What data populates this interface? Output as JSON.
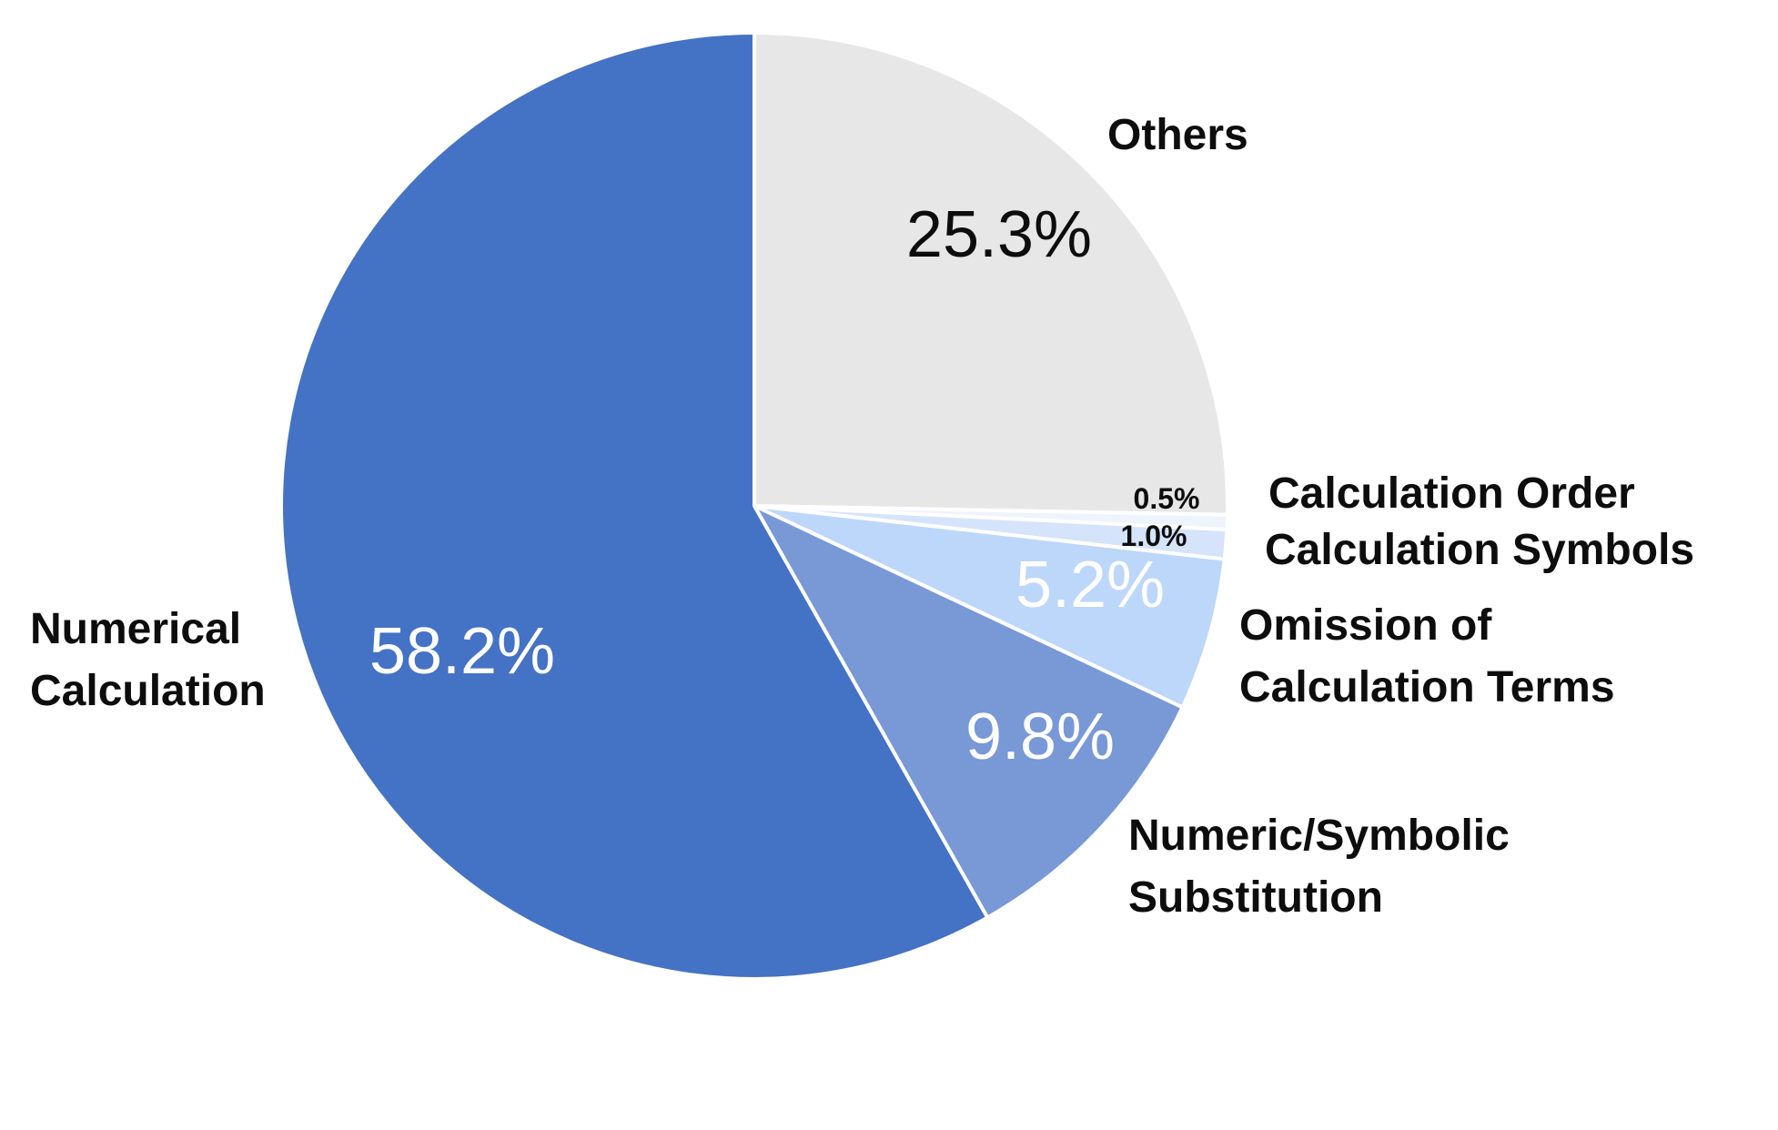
{
  "chart_data": {
    "type": "pie",
    "title": "",
    "legend": "none",
    "slices": [
      {
        "label": "Others",
        "label_lines": [
          "Others"
        ],
        "value": 25.3,
        "value_label": "25.3%",
        "color": "#e7e7e7",
        "value_color": "#0d0d0d"
      },
      {
        "label": "Calculation Order",
        "label_lines": [
          "Calculation Order"
        ],
        "value": 0.5,
        "value_label": "0.5%",
        "color": "#eef3fc",
        "value_color": "#0d0d0d"
      },
      {
        "label": "Calculation Symbols",
        "label_lines": [
          "Calculation Symbols"
        ],
        "value": 1.0,
        "value_label": "1.0%",
        "color": "#d5e4fb",
        "value_color": "#0d0d0d"
      },
      {
        "label": "Omission of Calculation Terms",
        "label_lines": [
          "Omission of",
          "Calculation Terms"
        ],
        "value": 5.2,
        "value_label": "5.2%",
        "color": "#bdd7fa",
        "value_color": "#ffffff"
      },
      {
        "label": "Numeric/Symbolic Substitution",
        "label_lines": [
          "Numeric/Symbolic",
          "Substitution"
        ],
        "value": 9.8,
        "value_label": "9.8%",
        "color": "#7898d6",
        "value_color": "#ffffff"
      },
      {
        "label": "Numerical Calculation",
        "label_lines": [
          "Numerical",
          "Calculation"
        ],
        "value": 58.2,
        "value_label": "58.2%",
        "color": "#4472c4",
        "value_color": "#ffffff"
      }
    ]
  }
}
